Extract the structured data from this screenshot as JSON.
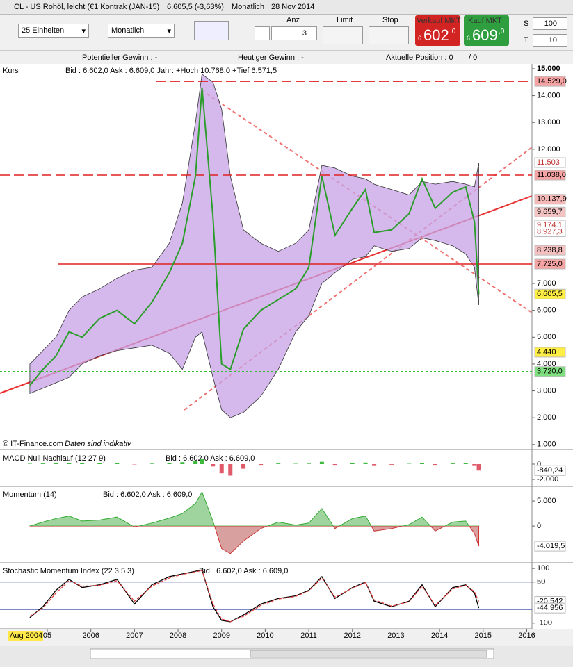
{
  "header": {
    "title": "CL - US Rohöl, leicht (€1 Kontrak (JAN-15)",
    "price": "6.605,5 (-3,63%)",
    "period": "Monatlich",
    "date": "28 Nov 2014"
  },
  "toolbar": {
    "units": "25 Einheiten",
    "interval": "Monatlich",
    "anz_label": "Anz",
    "anz": "3",
    "limit": "Limit",
    "stop": "Stop",
    "sell_label": "Verkauf MKT",
    "sell_small": "6",
    "sell_big": "602",
    "sell_dec": ",0",
    "buy_label": "Kauf MKT",
    "buy_small": "6",
    "buy_big": "609",
    "buy_dec": ",0",
    "s_label": "S",
    "s_value": "100",
    "t_label": "T",
    "t_value": "10"
  },
  "status": {
    "potential": "Potentieller Gewinn : -",
    "today": "Heutiger Gewinn : -",
    "position": "Aktuelle Position : 0",
    "position2": "/ 0"
  },
  "footer": {
    "source": "© IT-Finance.com",
    "note": "Daten sind indikativ",
    "start": "Aug 2004"
  },
  "chart_data": [
    {
      "type": "line",
      "title": "Kurs",
      "info": "Bid : 6.602,0  Ask : 6.609,0  Jahr: +Hoch 10.768,0 +Tief 6.571,5",
      "color": "#2a9d2a",
      "x": [
        2004.6,
        2004.9,
        2005.2,
        2005.5,
        2005.8,
        2006.2,
        2006.6,
        2007.0,
        2007.4,
        2007.8,
        2008.1,
        2008.4,
        2008.55,
        2008.8,
        2009.0,
        2009.2,
        2009.5,
        2009.9,
        2010.3,
        2010.7,
        2011.0,
        2011.3,
        2011.6,
        2012.0,
        2012.3,
        2012.5,
        2012.9,
        2013.3,
        2013.6,
        2013.9,
        2014.3,
        2014.6,
        2014.8,
        2014.9
      ],
      "values": [
        3200,
        3800,
        4300,
        5200,
        5000,
        5700,
        6000,
        5500,
        6300,
        7400,
        8500,
        11000,
        14300,
        9500,
        4000,
        3800,
        5300,
        6000,
        6400,
        6800,
        7600,
        11000,
        8800,
        9800,
        10500,
        8900,
        9000,
        9600,
        10900,
        9800,
        10400,
        10600,
        9300,
        6605.5
      ],
      "band": {
        "color": "#c7a2e6",
        "upper": [
          4000,
          4500,
          5000,
          6000,
          6500,
          6800,
          7200,
          7500,
          7600,
          8500,
          10000,
          13000,
          14800,
          14500,
          13500,
          11000,
          9000,
          8500,
          8200,
          8500,
          9000,
          11400,
          11300,
          11000,
          10900,
          10700,
          10500,
          10300,
          10800,
          10700,
          10800,
          10700,
          10600,
          11500
        ],
        "lower": [
          2900,
          3100,
          3300,
          3500,
          4000,
          4300,
          4500,
          4600,
          4700,
          4400,
          3800,
          5000,
          5200,
          3500,
          2300,
          2000,
          2200,
          2800,
          3800,
          5200,
          5800,
          7000,
          7400,
          7900,
          8000,
          8400,
          8200,
          8300,
          8700,
          8600,
          8400,
          8100,
          7600,
          6200
        ]
      },
      "xlim": [
        2003.915,
        2016.12
      ],
      "xticks": [
        {
          "value": 2005,
          "label": "05"
        },
        2006,
        2007,
        2008,
        2009,
        2010,
        2011,
        2012,
        2013,
        2014,
        2015,
        2016
      ],
      "ylim": [
        840,
        15180
      ],
      "yticks": [
        {
          "value": 1000,
          "label": "1.000"
        },
        {
          "value": 2000,
          "label": "2.000"
        },
        {
          "value": 3000,
          "label": "3.000"
        },
        {
          "value": 4000,
          "label": "4.000"
        },
        {
          "value": 5000,
          "label": "5.000"
        },
        {
          "value": 6000,
          "label": "6.000"
        },
        {
          "value": 7000,
          "label": "7.000"
        },
        {
          "value": 12000,
          "label": "12.000"
        },
        {
          "value": 13000,
          "label": "13.000"
        },
        {
          "value": 14000,
          "label": "14.000"
        },
        {
          "value": 15000,
          "label": "15.000"
        }
      ],
      "levels": [
        {
          "value": 14529,
          "color": "#e02020",
          "dash": "14 6"
        },
        {
          "value": 11038,
          "color": "#e02020",
          "dash": "14 6"
        },
        {
          "value": 7725,
          "color": "#e02020",
          "dash": "none"
        },
        {
          "value": 3720,
          "color": "#30c030",
          "dash": "3 3"
        }
      ],
      "price_labels": [
        {
          "value": 14529,
          "label": "14.529,0",
          "color": "#f5a3a3"
        },
        {
          "value": 11503,
          "label": "11.503",
          "color": "#ffffff"
        },
        {
          "value": 11038,
          "label": "11.038,0",
          "color": "#f5a3a3"
        },
        {
          "value": 10137.9,
          "label": "10.137,9",
          "color": "#f7b8b8"
        },
        {
          "value": 9659.7,
          "label": "9.659,7",
          "color": "#f4c4c4"
        },
        {
          "value": 9174.1,
          "label": "9.174,1",
          "color": "#ffffff"
        },
        {
          "value": 8927.3,
          "label": "8.927,3",
          "color": "#ffffff"
        },
        {
          "value": 8238.8,
          "label": "8.238,8",
          "color": "#f7c0c0"
        },
        {
          "value": 7725,
          "label": "7.725,0",
          "color": "#f5a3a3"
        },
        {
          "value": 6605.5,
          "label": "6.605,5",
          "color": "#ffee44"
        },
        {
          "value": 4440,
          "label": "4.440",
          "color": "#ffee44"
        },
        {
          "value": 3720,
          "label": "3.720,0",
          "color": "#7fe07f"
        }
      ]
    },
    {
      "type": "bar",
      "title": "MACD Null Nachlauf (12 27 9)",
      "info": "Bid : 6.602,0  Ask : 6.609,0",
      "x": [
        2004.6,
        2004.9,
        2005.2,
        2005.5,
        2005.8,
        2006.2,
        2006.6,
        2007.0,
        2007.4,
        2007.8,
        2008.1,
        2008.4,
        2008.55,
        2008.8,
        2009.0,
        2009.2,
        2009.5,
        2009.9,
        2010.3,
        2010.7,
        2011.0,
        2011.3,
        2011.6,
        2012.0,
        2012.3,
        2012.5,
        2012.9,
        2013.3,
        2013.6,
        2013.9,
        2014.3,
        2014.6,
        2014.8,
        2014.9
      ],
      "values": [
        50,
        80,
        120,
        150,
        100,
        120,
        140,
        -40,
        60,
        150,
        250,
        450,
        650,
        -300,
        -1200,
        -1500,
        -600,
        -100,
        80,
        40,
        60,
        300,
        -100,
        150,
        200,
        -150,
        -80,
        40,
        180,
        -100,
        80,
        100,
        -150,
        -840.24
      ],
      "ylim": [
        -2727,
        1636
      ],
      "yticks": [
        0,
        {
          "value": -2000,
          "label": "-2.000"
        }
      ],
      "last_label": {
        "value": -840.24,
        "label": "-840,24"
      }
    },
    {
      "type": "area",
      "title": "Momentum (14)",
      "info": "Bid : 6.602,0  Ask : 6.609,0",
      "x": [
        2004.6,
        2004.9,
        2005.2,
        2005.5,
        2005.8,
        2006.2,
        2006.6,
        2007.0,
        2007.4,
        2007.8,
        2008.1,
        2008.4,
        2008.55,
        2008.8,
        2009.0,
        2009.2,
        2009.5,
        2009.9,
        2010.3,
        2010.7,
        2011.0,
        2011.3,
        2011.6,
        2012.0,
        2012.3,
        2012.5,
        2012.9,
        2013.3,
        2013.6,
        2013.9,
        2014.3,
        2014.6,
        2014.8,
        2014.9
      ],
      "values": [
        0,
        800,
        1500,
        2000,
        1000,
        1200,
        1800,
        -200,
        600,
        1600,
        2500,
        4500,
        6800,
        1000,
        -4500,
        -5500,
        -3000,
        -500,
        800,
        200,
        600,
        3500,
        -500,
        1500,
        2000,
        -1000,
        -500,
        300,
        1800,
        -1000,
        800,
        1000,
        -1500,
        -4019.5
      ],
      "ylim": [
        -7060,
        7650
      ],
      "yticks": [
        {
          "value": 5000,
          "label": "5.000"
        },
        0
      ],
      "last_label": {
        "value": -4019.5,
        "label": "-4.019,5"
      }
    },
    {
      "type": "line",
      "title": "Stochastic Momentum Index (22 3 5 3)",
      "info": "Bid : 6.602,0  Ask : 6.609,0",
      "x": [
        2004.6,
        2004.9,
        2005.2,
        2005.5,
        2005.8,
        2006.2,
        2006.6,
        2007.0,
        2007.4,
        2007.8,
        2008.1,
        2008.4,
        2008.55,
        2008.8,
        2009.0,
        2009.2,
        2009.5,
        2009.9,
        2010.3,
        2010.7,
        2011.0,
        2011.3,
        2011.6,
        2012.0,
        2012.3,
        2012.5,
        2012.9,
        2013.3,
        2013.6,
        2013.9,
        2014.3,
        2014.6,
        2014.8,
        2014.9
      ],
      "series": [
        {
          "color": "#000000",
          "values": [
            -80,
            -40,
            20,
            60,
            30,
            40,
            60,
            -30,
            40,
            70,
            80,
            90,
            95,
            -40,
            -90,
            -95,
            -70,
            -30,
            -10,
            0,
            20,
            70,
            -10,
            30,
            50,
            -20,
            -40,
            -20,
            40,
            -40,
            30,
            40,
            10,
            -44.956
          ]
        },
        {
          "color": "#e04040",
          "values": [
            -75,
            -45,
            10,
            55,
            35,
            38,
            55,
            -20,
            35,
            65,
            78,
            88,
            92,
            -30,
            -85,
            -95,
            -75,
            -35,
            -12,
            -2,
            18,
            65,
            -5,
            28,
            48,
            -15,
            -38,
            -22,
            35,
            -35,
            25,
            38,
            15,
            -20.542
          ]
        }
      ],
      "ylim": [
        -120.8,
        115.6
      ],
      "yticks": [
        100,
        50,
        -100
      ],
      "levels": [
        50,
        -50
      ],
      "last_labels": [
        {
          "value": -20.542,
          "label": "-20,542"
        },
        {
          "value": -44.956,
          "label": "-44,956"
        }
      ]
    }
  ]
}
